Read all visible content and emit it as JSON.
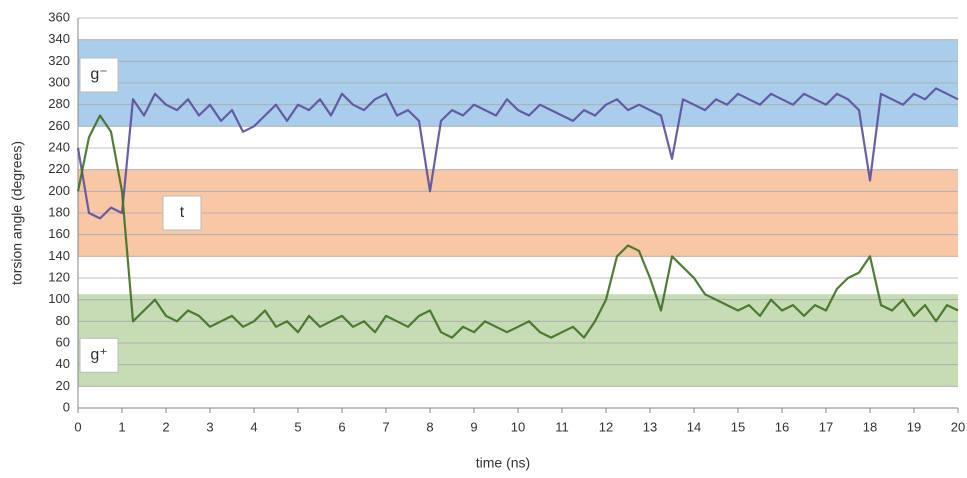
{
  "chart_data": {
    "type": "line",
    "x_label": "time (ns)",
    "y_label": "torsion angle (degrees)",
    "xlim": [
      0,
      20
    ],
    "ylim": [
      0,
      360
    ],
    "xticks": [
      0,
      1,
      2,
      3,
      4,
      5,
      6,
      7,
      8,
      9,
      10,
      11,
      12,
      13,
      14,
      15,
      16,
      17,
      18,
      19,
      20
    ],
    "yticks": [
      0,
      20,
      40,
      60,
      80,
      100,
      120,
      140,
      160,
      180,
      200,
      220,
      240,
      260,
      280,
      300,
      320,
      340,
      360
    ],
    "grid": true,
    "bands": [
      {
        "label": "g⁻",
        "from": 260,
        "to": 340,
        "color": "#aacdec"
      },
      {
        "label": "t",
        "from": 140,
        "to": 220,
        "color": "#f8c7a6"
      },
      {
        "label": "g⁺",
        "from": 20,
        "to": 105,
        "color": "#c5dcb4"
      }
    ],
    "x": [
      0,
      0.25,
      0.5,
      0.75,
      1,
      1.25,
      1.5,
      1.75,
      2,
      2.25,
      2.5,
      2.75,
      3,
      3.25,
      3.5,
      3.75,
      4,
      4.25,
      4.5,
      4.75,
      5,
      5.25,
      5.5,
      5.75,
      6,
      6.25,
      6.5,
      6.75,
      7,
      7.25,
      7.5,
      7.75,
      8,
      8.25,
      8.5,
      8.75,
      9,
      9.25,
      9.5,
      9.75,
      10,
      10.25,
      10.5,
      10.75,
      11,
      11.25,
      11.5,
      11.75,
      12,
      12.25,
      12.5,
      12.75,
      13,
      13.25,
      13.5,
      13.75,
      14,
      14.25,
      14.5,
      14.75,
      15,
      15.25,
      15.5,
      15.75,
      16,
      16.25,
      16.5,
      16.75,
      17,
      17.25,
      17.5,
      17.75,
      18,
      18.25,
      18.5,
      18.75,
      19,
      19.25,
      19.5,
      19.75,
      20
    ],
    "series": [
      {
        "color": "#5a4f9c",
        "values": [
          240,
          180,
          175,
          185,
          180,
          285,
          270,
          290,
          280,
          275,
          285,
          270,
          280,
          265,
          275,
          255,
          260,
          270,
          280,
          265,
          280,
          275,
          285,
          270,
          290,
          280,
          275,
          285,
          290,
          270,
          275,
          265,
          200,
          265,
          275,
          270,
          280,
          275,
          270,
          285,
          275,
          270,
          280,
          275,
          270,
          265,
          275,
          270,
          280,
          285,
          275,
          280,
          275,
          270,
          230,
          285,
          280,
          275,
          285,
          280,
          290,
          285,
          280,
          290,
          285,
          280,
          290,
          285,
          280,
          290,
          285,
          275,
          210,
          290,
          285,
          280,
          290,
          285,
          295,
          290,
          285
        ]
      },
      {
        "color": "#3f6e22",
        "values": [
          200,
          250,
          270,
          255,
          200,
          80,
          90,
          100,
          85,
          80,
          90,
          85,
          75,
          80,
          85,
          75,
          80,
          90,
          75,
          80,
          70,
          85,
          75,
          80,
          85,
          75,
          80,
          70,
          85,
          80,
          75,
          85,
          90,
          70,
          65,
          75,
          70,
          80,
          75,
          70,
          75,
          80,
          70,
          65,
          70,
          75,
          65,
          80,
          100,
          140,
          150,
          145,
          120,
          90,
          140,
          130,
          120,
          105,
          100,
          95,
          90,
          95,
          85,
          100,
          90,
          95,
          85,
          95,
          90,
          110,
          120,
          125,
          140,
          95,
          90,
          100,
          85,
          95,
          80,
          95,
          90
        ]
      }
    ]
  }
}
